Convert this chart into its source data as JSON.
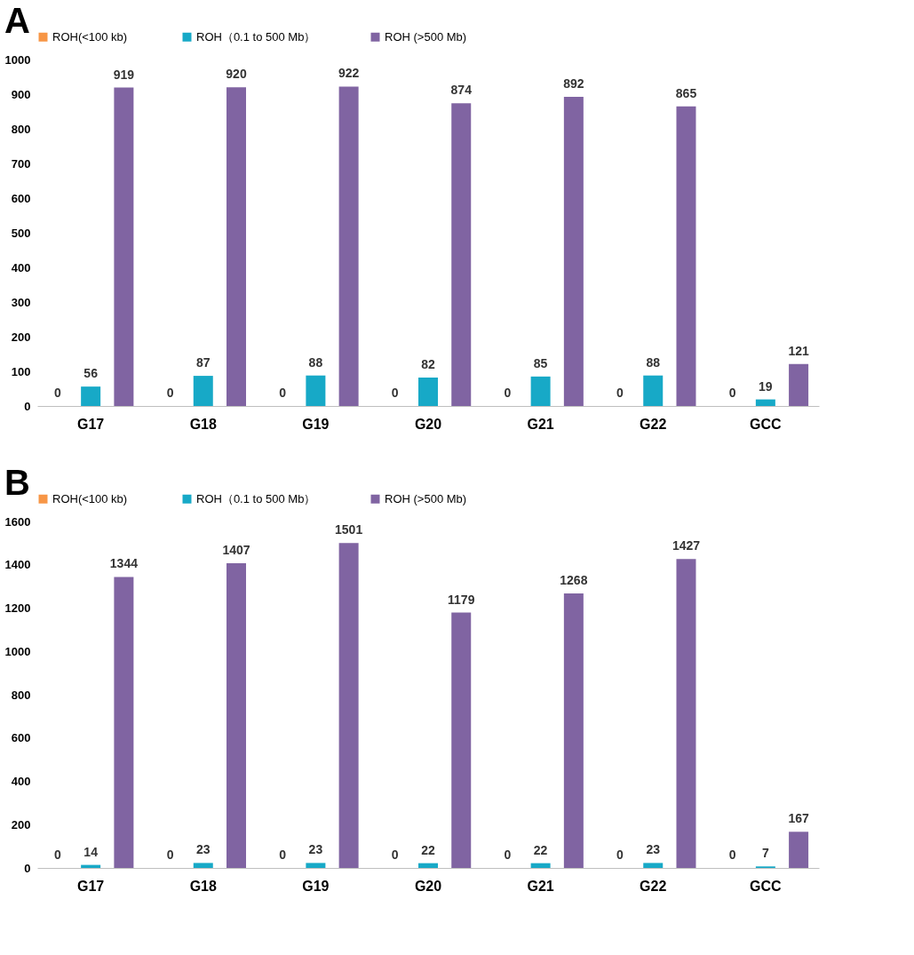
{
  "chart_data": [
    {
      "type": "bar",
      "title": "A",
      "categories": [
        "G17",
        "G18",
        "G19",
        "G20",
        "G21",
        "G22",
        "GCC"
      ],
      "ylim": [
        0,
        1000
      ],
      "yticks": [
        0,
        100,
        200,
        300,
        400,
        500,
        600,
        700,
        800,
        900,
        1000
      ],
      "grid": false,
      "legend": "top",
      "data_labels": true,
      "series": [
        {
          "name": "ROH(<100 kb)",
          "color": "#f79646",
          "values": [
            0,
            0,
            0,
            0,
            0,
            0,
            0
          ]
        },
        {
          "name": "ROH（0.1 to 500 Mb）",
          "color": "#17a9c7",
          "values": [
            56,
            87,
            88,
            82,
            85,
            88,
            19
          ]
        },
        {
          "name": "ROH (>500 Mb)",
          "color": "#8064a2",
          "values": [
            919,
            920,
            922,
            874,
            892,
            865,
            121
          ]
        }
      ]
    },
    {
      "type": "bar",
      "title": "B",
      "categories": [
        "G17",
        "G18",
        "G19",
        "G20",
        "G21",
        "G22",
        "GCC"
      ],
      "ylim": [
        0,
        1600
      ],
      "yticks": [
        0,
        200,
        400,
        600,
        800,
        1000,
        1200,
        1400,
        1600
      ],
      "grid": false,
      "legend": "top",
      "data_labels": true,
      "series": [
        {
          "name": "ROH(<100 kb)",
          "color": "#f79646",
          "values": [
            0,
            0,
            0,
            0,
            0,
            0,
            0
          ]
        },
        {
          "name": "ROH（0.1 to 500 Mb）",
          "color": "#17a9c7",
          "values": [
            14,
            23,
            23,
            22,
            22,
            23,
            7
          ]
        },
        {
          "name": "ROH (>500 Mb)",
          "color": "#8064a2",
          "values": [
            1344,
            1407,
            1501,
            1179,
            1268,
            1427,
            167
          ]
        }
      ]
    }
  ]
}
